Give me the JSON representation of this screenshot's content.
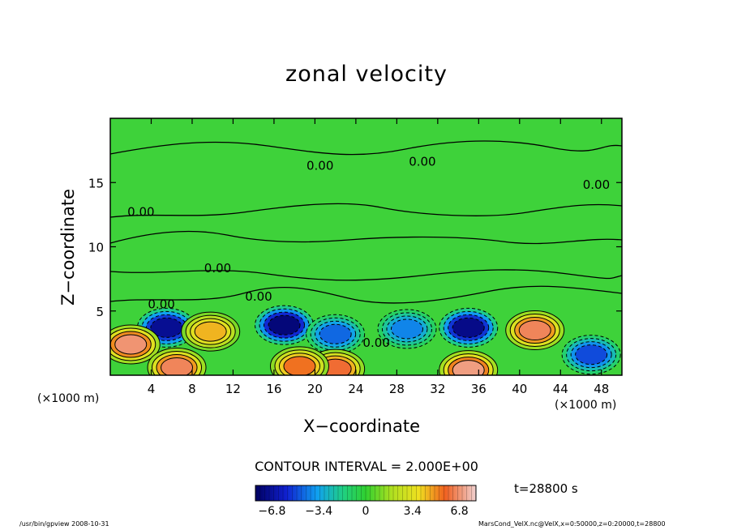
{
  "chart_data": {
    "type": "heatmap",
    "title": "zonal velocity",
    "xlabel": "X−coordinate",
    "ylabel": "Z−coordinate",
    "x_unit_left": "(×1000 m)",
    "x_unit_right": "(×1000 m)",
    "xlim": [
      0,
      50
    ],
    "ylim": [
      0,
      20
    ],
    "x_ticks": [
      4,
      8,
      12,
      16,
      20,
      24,
      28,
      32,
      36,
      40,
      44,
      48
    ],
    "y_ticks": [
      5,
      10,
      15
    ],
    "contour_labels": [
      {
        "x": 3.0,
        "y": 12.4,
        "text": "0.00"
      },
      {
        "x": 20.5,
        "y": 16.0,
        "text": "0.00"
      },
      {
        "x": 30.5,
        "y": 16.3,
        "text": "0.00"
      },
      {
        "x": 47.5,
        "y": 14.5,
        "text": "0.00"
      },
      {
        "x": 10.5,
        "y": 8.0,
        "text": "0.00"
      },
      {
        "x": 14.5,
        "y": 5.8,
        "text": "0.00"
      },
      {
        "x": 5.0,
        "y": 5.2,
        "text": "0.00"
      },
      {
        "x": 26.0,
        "y": 2.2,
        "text": "0.00"
      }
    ],
    "features": [
      {
        "x": 5.5,
        "y": 3.7,
        "value": -7.0
      },
      {
        "x": 17.0,
        "y": 3.9,
        "value": -7.5
      },
      {
        "x": 35.0,
        "y": 3.7,
        "value": -7.2
      },
      {
        "x": 29.0,
        "y": 3.6,
        "value": -4.0
      },
      {
        "x": 22.0,
        "y": 3.2,
        "value": -4.5
      },
      {
        "x": 9.8,
        "y": 3.4,
        "value": 4.5
      },
      {
        "x": 22.0,
        "y": 0.5,
        "value": 6.0
      },
      {
        "x": 2.0,
        "y": 2.4,
        "value": 6.8
      },
      {
        "x": 6.5,
        "y": 0.6,
        "value": 6.5
      },
      {
        "x": 18.5,
        "y": 0.7,
        "value": 5.5
      },
      {
        "x": 35.0,
        "y": 0.4,
        "value": 7.0
      },
      {
        "x": 41.5,
        "y": 3.5,
        "value": 6.5
      },
      {
        "x": 47.0,
        "y": 1.6,
        "value": -5.0
      }
    ],
    "colorbar": {
      "vmin": -8,
      "vmax": 8,
      "ticks": [
        "−6.8",
        "−3.4",
        "0",
        "3.4",
        "6.8"
      ],
      "tick_values": [
        -6.8,
        -3.4,
        0,
        3.4,
        6.8
      ]
    },
    "contour_interval": "CONTOUR INTERVAL = 2.000E+00",
    "time_label": "t=28800  s",
    "footer_left": "/usr/bin/gpview   2008-10-31",
    "footer_right": "MarsCond_VelX.nc@VelX,x=0:50000,z=0:20000,t=28800"
  }
}
